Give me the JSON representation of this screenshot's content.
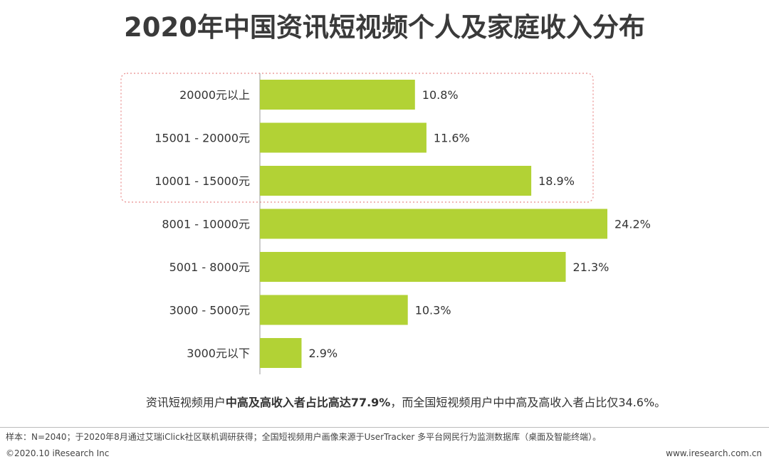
{
  "title": "2020年中国资讯短视频个人及家庭收入分布",
  "summary": {
    "part1": "资讯短视频用户",
    "highlight": "中高及高收入者占比高达77.9%",
    "part2": "，而全国短视频用户中中高及高收入者占比仅34.6%。"
  },
  "note": "样本：N=2040；于2020年8月通过艾瑞iClick社区联机调研获得；全国短视频用户画像来源于UserTracker 多平台网民行为监测数据库（桌面及智能终端）。",
  "copyright": "©2020.10 iResearch Inc",
  "website": "www.iresearch.com.cn",
  "colors": {
    "bar": "#b2d235",
    "highlight_box": "#e88a8a",
    "axis": "#999999"
  },
  "chart_data": {
    "type": "bar",
    "orientation": "horizontal",
    "title": "2020年中国资讯短视频个人及家庭收入分布",
    "categories": [
      "20000元以上",
      "15001 - 20000元",
      "10001 - 15000元",
      "8001 - 10000元",
      "5001 - 8000元",
      "3000 - 5000元",
      "3000元以下"
    ],
    "values": [
      10.8,
      11.6,
      18.9,
      24.2,
      21.3,
      10.3,
      2.9
    ],
    "value_labels": [
      "10.8%",
      "11.6%",
      "18.9%",
      "24.2%",
      "21.3%",
      "10.3%",
      "2.9%"
    ],
    "unit": "%",
    "highlighted_categories": [
      "20000元以上",
      "15001 - 20000元",
      "10001 - 15000元"
    ],
    "xlim": [
      0,
      24.2
    ],
    "grid": false,
    "legend": "none"
  }
}
